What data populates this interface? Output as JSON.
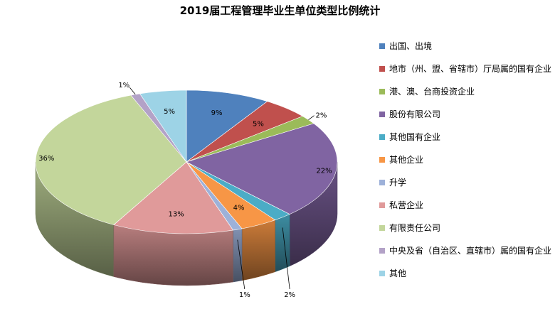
{
  "chart_data": {
    "type": "pie",
    "title": "2019届工程管理毕业生单位类型比例统计",
    "legend_position": "right",
    "labels": [
      "出国、出境",
      "地市（州、盟、省辖市）厅局属的国有企业",
      "港、澳、台商投资企业",
      "股份有限公司",
      "其他国有企业",
      "其他企业",
      "升学",
      "私营企业",
      "有限责任公司",
      "中央及省（自治区、直辖市）属的国有企业",
      "其他"
    ],
    "values": [
      9,
      5,
      2,
      22,
      2,
      4,
      1,
      13,
      36,
      1,
      5
    ],
    "data_labels": [
      "9%",
      "5%",
      "2%",
      "22%",
      "2%",
      "4%",
      "1%",
      "13%",
      "36%",
      "1%",
      "5%"
    ],
    "colors": [
      "#4F81BD",
      "#C0504D",
      "#9BBB59",
      "#8064A2",
      "#4BACC6",
      "#F79646",
      "#9DB1D9",
      "#E09A9A",
      "#C3D69B",
      "#B3A2C7",
      "#9DD3E6"
    ]
  }
}
